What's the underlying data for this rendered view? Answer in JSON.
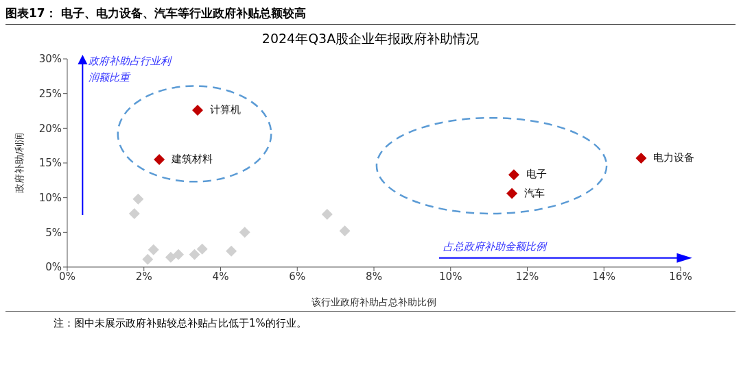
{
  "chart_data": {
    "type": "scatter",
    "title": "图表17： 电子、电力设备、汽车等行业政府补贴总额较高",
    "subtitle": "2024年Q3A股企业年报政府补助情况",
    "xlabel": "该行业政府补助占总补助比例",
    "ylabel": "政府补助/利润",
    "marker": "diamond",
    "grid": false,
    "legend": false,
    "series": [
      {
        "color": "#d0d0d0",
        "x": [
          1.75,
          1.85,
          2.25,
          2.1,
          2.7,
          2.9,
          3.32,
          3.52,
          4.28,
          4.63,
          6.78,
          7.24
        ],
        "values": [
          7.7,
          9.8,
          2.5,
          1.1,
          1.4,
          1.8,
          1.8,
          2.6,
          2.3,
          5.0,
          7.6,
          5.2
        ]
      },
      {
        "color": "#c00000",
        "x": [
          3.4,
          2.4,
          11.65,
          11.6,
          14.97
        ],
        "values": [
          22.6,
          15.5,
          13.3,
          10.6,
          15.7
        ]
      }
    ],
    "xlim": [
      0,
      16
    ],
    "xticks": [
      {
        "value": 0,
        "label": "0%"
      },
      {
        "value": 2,
        "label": "2%"
      },
      {
        "value": 4,
        "label": "4%"
      },
      {
        "value": 6,
        "label": "6%"
      },
      {
        "value": 8,
        "label": "8%"
      },
      {
        "value": 10,
        "label": "10%"
      },
      {
        "value": 12,
        "label": "12%"
      },
      {
        "value": 14,
        "label": "14%"
      },
      {
        "value": 16,
        "label": "16%"
      }
    ],
    "ylim": [
      0,
      30
    ],
    "yticks": [
      {
        "value": 0,
        "label": "0%"
      },
      {
        "value": 5,
        "label": "5%"
      },
      {
        "value": 10,
        "label": "10%"
      },
      {
        "value": 15,
        "label": "15%"
      },
      {
        "value": 20,
        "label": "20%"
      },
      {
        "value": 25,
        "label": "25%"
      },
      {
        "value": 30,
        "label": "30%"
      }
    ],
    "annotations": [
      {
        "text": "计算机",
        "x": 3.4,
        "y": 22.6
      },
      {
        "text": "建筑材料",
        "x": 2.4,
        "y": 15.5
      },
      {
        "text": "电子",
        "x": 11.65,
        "y": 13.3
      },
      {
        "text": "汽车",
        "x": 11.6,
        "y": 10.6
      },
      {
        "text": "电力设备",
        "x": 14.97,
        "y": 15.7
      },
      "政府补助占行业利润额比重",
      "占总政府补助金额比例",
      "注：图中未展示政府补贴较总补贴占比低于1%的行业。"
    ]
  }
}
